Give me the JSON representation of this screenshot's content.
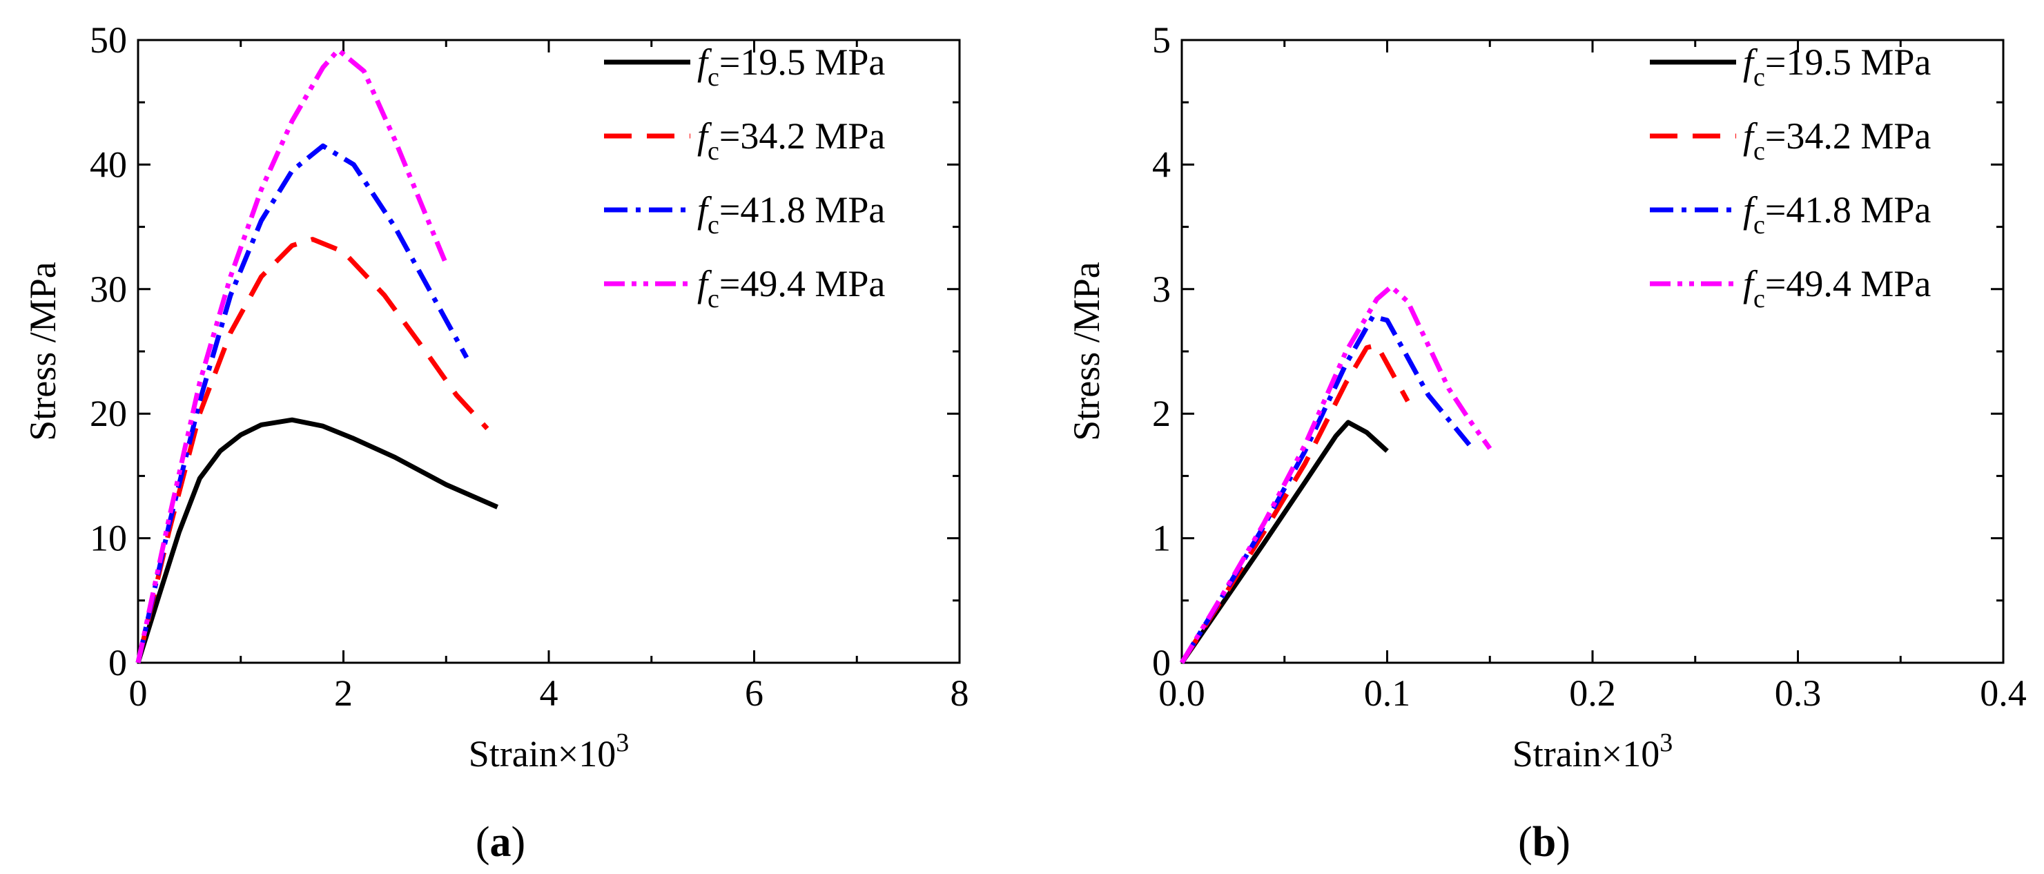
{
  "chart_data": [
    {
      "type": "line",
      "panel_label": {
        "open": "(",
        "letter": "a",
        "close": ")"
      },
      "xlabel": {
        "text": "Strain×10",
        "sup": "3"
      },
      "ylabel": "Stress /MPa",
      "xlim": [
        0,
        8
      ],
      "ylim": [
        0,
        50
      ],
      "xticks": [
        "0",
        "2",
        "4",
        "6",
        "8"
      ],
      "yticks": [
        "0",
        "10",
        "20",
        "30",
        "40",
        "50"
      ],
      "legend_position": "top-right",
      "series": [
        {
          "name": "fc=19.5 MPa",
          "legend": {
            "f": "f",
            "sub": "c",
            "rest": "=19.5 MPa"
          },
          "color": "#000000",
          "dash": "solid",
          "x": [
            0,
            0.2,
            0.4,
            0.6,
            0.8,
            1.0,
            1.2,
            1.5,
            1.8,
            2.1,
            2.5,
            3.0,
            3.5
          ],
          "y": [
            0,
            5.3,
            10.5,
            14.8,
            17.0,
            18.3,
            19.1,
            19.5,
            19.0,
            18.0,
            16.5,
            14.3,
            12.5
          ]
        },
        {
          "name": "fc=34.2 MPa",
          "legend": {
            "f": "f",
            "sub": "c",
            "rest": "=34.2 MPa"
          },
          "color": "#ff0000",
          "dash": "long-dash",
          "x": [
            0,
            0.3,
            0.6,
            0.9,
            1.2,
            1.5,
            1.7,
            2.0,
            2.4,
            2.8,
            3.1,
            3.4
          ],
          "y": [
            0,
            10.5,
            20.0,
            26.5,
            31.0,
            33.5,
            34.0,
            33.0,
            29.5,
            25.0,
            21.5,
            18.8
          ]
        },
        {
          "name": "fc=41.8 MPa",
          "legend": {
            "f": "f",
            "sub": "c",
            "rest": "=41.8 MPa"
          },
          "color": "#0000ff",
          "dash": "dash-dot",
          "x": [
            0,
            0.3,
            0.6,
            0.9,
            1.2,
            1.5,
            1.8,
            2.1,
            2.5,
            2.9,
            3.2
          ],
          "y": [
            0,
            11.0,
            21.0,
            29.5,
            35.5,
            39.5,
            41.5,
            40.0,
            35.0,
            29.0,
            24.5
          ]
        },
        {
          "name": "fc=49.4 MPa",
          "legend": {
            "f": "f",
            "sub": "c",
            "rest": "=49.4 MPa"
          },
          "color": "#ff00ff",
          "dash": "dash-dot-dot",
          "x": [
            0,
            0.3,
            0.6,
            0.9,
            1.2,
            1.5,
            1.8,
            1.95,
            2.2,
            2.5,
            2.8,
            3.0
          ],
          "y": [
            0,
            11.5,
            22.5,
            31.0,
            38.0,
            43.5,
            47.8,
            49.2,
            47.5,
            42.0,
            36.0,
            32.0
          ]
        }
      ]
    },
    {
      "type": "line",
      "panel_label": {
        "open": "(",
        "letter": "b",
        "close": ")"
      },
      "xlabel": {
        "text": "Strain×10",
        "sup": "3"
      },
      "ylabel": "Stress /MPa",
      "xlim": [
        0,
        0.4
      ],
      "ylim": [
        0,
        5
      ],
      "xticks": [
        "0.0",
        "0.1",
        "0.2",
        "0.3",
        "0.4"
      ],
      "yticks": [
        "0",
        "1",
        "2",
        "3",
        "4",
        "5"
      ],
      "legend_position": "top-right",
      "series": [
        {
          "name": "fc=19.5 MPa",
          "legend": {
            "f": "f",
            "sub": "c",
            "rest": "=19.5 MPa"
          },
          "color": "#000000",
          "dash": "solid",
          "x": [
            0,
            0.02,
            0.04,
            0.06,
            0.075,
            0.081,
            0.09,
            0.1
          ],
          "y": [
            0,
            0.48,
            0.96,
            1.45,
            1.82,
            1.93,
            1.85,
            1.7
          ]
        },
        {
          "name": "fc=34.2 MPa",
          "legend": {
            "f": "f",
            "sub": "c",
            "rest": "=34.2 MPa"
          },
          "color": "#ff0000",
          "dash": "long-dash",
          "x": [
            0,
            0.02,
            0.04,
            0.06,
            0.08,
            0.09,
            0.095,
            0.1,
            0.11
          ],
          "y": [
            0,
            0.52,
            1.05,
            1.6,
            2.25,
            2.53,
            2.55,
            2.4,
            2.1
          ]
        },
        {
          "name": "fc=41.8 MPa",
          "legend": {
            "f": "f",
            "sub": "c",
            "rest": "=41.8 MPa"
          },
          "color": "#0000ff",
          "dash": "dash-dot",
          "x": [
            0,
            0.02,
            0.04,
            0.06,
            0.08,
            0.093,
            0.1,
            0.11,
            0.12,
            0.13,
            0.14
          ],
          "y": [
            0,
            0.54,
            1.1,
            1.7,
            2.4,
            2.78,
            2.75,
            2.45,
            2.15,
            1.95,
            1.75
          ]
        },
        {
          "name": "fc=49.4 MPa",
          "legend": {
            "f": "f",
            "sub": "c",
            "rest": "=49.4 MPa"
          },
          "color": "#ff00ff",
          "dash": "dash-dot-dot",
          "x": [
            0,
            0.02,
            0.04,
            0.06,
            0.08,
            0.095,
            0.102,
            0.11,
            0.12,
            0.13,
            0.14,
            0.15
          ],
          "y": [
            0,
            0.55,
            1.12,
            1.75,
            2.5,
            2.92,
            3.02,
            2.9,
            2.55,
            2.2,
            1.95,
            1.72
          ]
        }
      ]
    }
  ]
}
